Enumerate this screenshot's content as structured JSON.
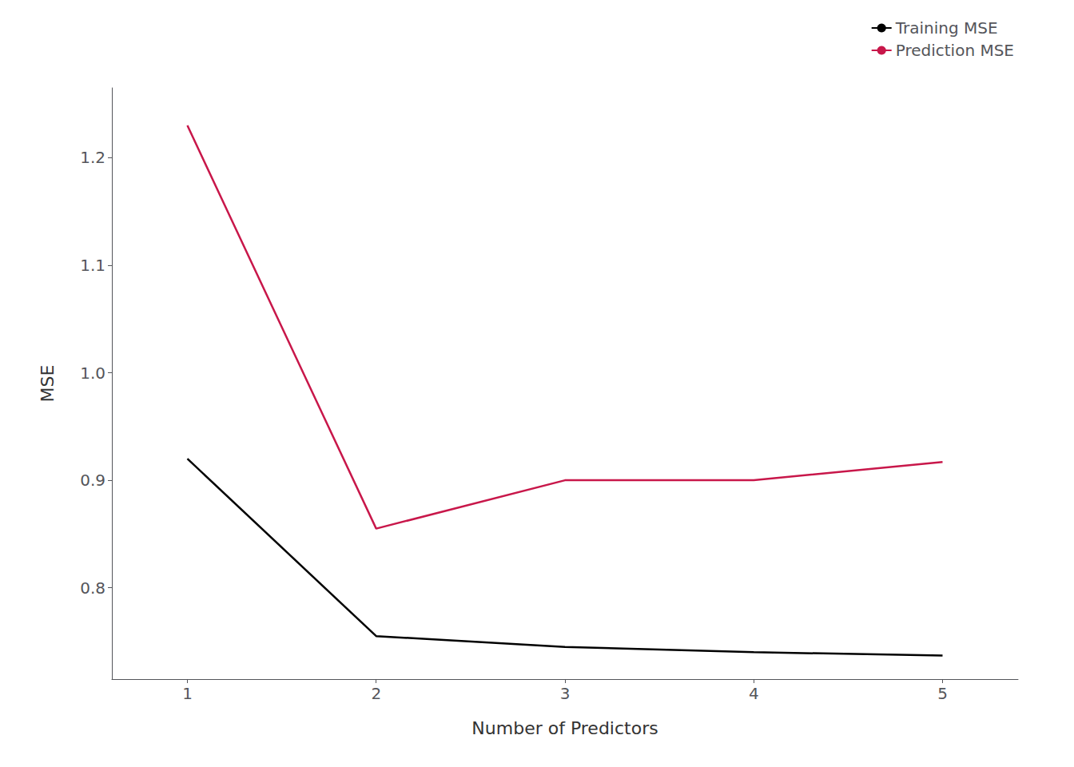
{
  "chart_data": {
    "type": "line",
    "xlabel": "Number of Predictors",
    "ylabel": "MSE",
    "x": [
      1,
      2,
      3,
      4,
      5
    ],
    "series": [
      {
        "name": "Training MSE",
        "color": "#000000",
        "values": [
          0.92,
          0.755,
          0.745,
          0.74,
          0.737
        ]
      },
      {
        "name": "Prediction MSE",
        "color": "#c8174a",
        "values": [
          1.23,
          0.855,
          0.9,
          0.9,
          0.917
        ]
      }
    ],
    "xlim": [
      0.6,
      5.4
    ],
    "xticks": [
      1,
      2,
      3,
      4,
      5
    ],
    "ylim": [
      0.715,
      1.265
    ],
    "yticks": [
      0.8,
      0.9,
      {
        "value": 1.0,
        "label": "1.0"
      },
      1.1,
      1.2
    ],
    "grid": false,
    "legend": "upper right"
  }
}
